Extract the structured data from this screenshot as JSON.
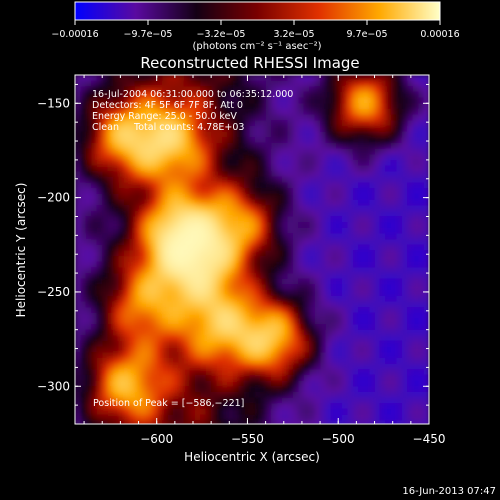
{
  "chart_data": {
    "type": "heatmap",
    "title": "Reconstructed RHESSI Image",
    "xlabel": "Heliocentric X (arcsec)",
    "ylabel": "Heliocentric Y (arcsec)",
    "xlim": [
      -645,
      -450
    ],
    "ylim": [
      -320,
      -135
    ],
    "x_ticks": [
      {
        "value": -600,
        "label": "−600"
      },
      {
        "value": -550,
        "label": "−550"
      },
      {
        "value": -500,
        "label": "−500"
      },
      {
        "value": -450,
        "label": "−450"
      }
    ],
    "y_ticks": [
      {
        "value": -150,
        "label": "−150"
      },
      {
        "value": -200,
        "label": "−200"
      },
      {
        "value": -250,
        "label": "−250"
      },
      {
        "value": -300,
        "label": "−300"
      }
    ],
    "colorbar": {
      "min": -0.00016,
      "max": 0.00016,
      "tick_labels": [
        "−0.00016",
        "−9.7e−05",
        "−3.2e−05",
        "3.2e−05",
        "9.7e−05",
        "0.00016"
      ],
      "unit_label": "(photons cm⁻² s⁻¹ asec⁻²)",
      "stops": [
        "#0000ff",
        "#5a0aa0",
        "#140014",
        "#7a0000",
        "#e03000",
        "#ffa800",
        "#ffffc8"
      ]
    },
    "sources": [
      {
        "x": -586,
        "y": -221,
        "strength": 1.0
      },
      {
        "x": -620,
        "y": -168,
        "strength": 0.7
      },
      {
        "x": -593,
        "y": -170,
        "strength": 0.65
      },
      {
        "x": -553,
        "y": -215,
        "strength": 0.6
      },
      {
        "x": -535,
        "y": -275,
        "strength": 0.9
      },
      {
        "x": -564,
        "y": -268,
        "strength": 0.6
      },
      {
        "x": -618,
        "y": -300,
        "strength": 0.75
      },
      {
        "x": -485,
        "y": -150,
        "strength": 0.95
      },
      {
        "x": -608,
        "y": -256,
        "strength": 0.55
      },
      {
        "x": -575,
        "y": -240,
        "strength": 0.5
      }
    ],
    "annotations": [
      "16-Jul-2004 06:31:00.000 to 06:35:12.000",
      "Detectors: 4F 5F 6F 7F 8F, Att 0",
      "Energy Range: 25.0 - 50.0 keV",
      "Clean     Total counts: 4.78E+03"
    ],
    "peak_label": "Position of Peak = [−586,−221]",
    "timestamp": "16-Jun-2013 07:47"
  }
}
